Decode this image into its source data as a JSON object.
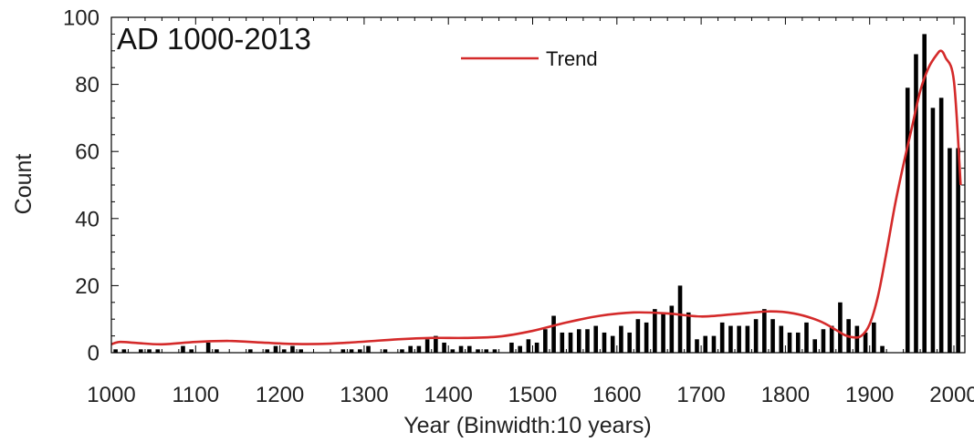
{
  "chart_data": {
    "type": "bar",
    "title": "AD 1000-2013",
    "xlabel": "Year (Binwidth:10 years)",
    "ylabel": "Count",
    "xlim": [
      1000,
      2013
    ],
    "ylim": [
      0,
      100
    ],
    "xticks": [
      1000,
      1100,
      1200,
      1300,
      1400,
      1500,
      1600,
      1700,
      1800,
      1900,
      2000
    ],
    "yticks": [
      0,
      20,
      40,
      60,
      80,
      100
    ],
    "grid": false,
    "legend_position": "top-center",
    "bar_color": "#000000",
    "trend_color": "#d42a2a",
    "series": [
      {
        "type": "bar",
        "x": [
          1005,
          1015,
          1025,
          1035,
          1045,
          1055,
          1065,
          1075,
          1085,
          1095,
          1105,
          1115,
          1125,
          1135,
          1145,
          1155,
          1165,
          1175,
          1185,
          1195,
          1205,
          1215,
          1225,
          1235,
          1245,
          1255,
          1265,
          1275,
          1285,
          1295,
          1305,
          1315,
          1325,
          1335,
          1345,
          1355,
          1365,
          1375,
          1385,
          1395,
          1405,
          1415,
          1425,
          1435,
          1445,
          1455,
          1465,
          1475,
          1485,
          1495,
          1505,
          1515,
          1525,
          1535,
          1545,
          1555,
          1565,
          1575,
          1585,
          1595,
          1605,
          1615,
          1625,
          1635,
          1645,
          1655,
          1665,
          1675,
          1685,
          1695,
          1705,
          1715,
          1725,
          1735,
          1745,
          1755,
          1765,
          1775,
          1785,
          1795,
          1805,
          1815,
          1825,
          1835,
          1845,
          1855,
          1865,
          1875,
          1885,
          1895,
          1905,
          1915,
          1925,
          1935,
          1945,
          1955,
          1965,
          1975,
          1985,
          1995,
          2005
        ],
        "values": [
          1,
          1,
          0,
          1,
          1,
          1,
          0,
          0,
          2,
          1,
          0,
          3,
          1,
          0,
          0,
          0,
          1,
          0,
          1,
          2,
          1,
          2,
          1,
          0,
          0,
          0,
          0,
          1,
          1,
          1,
          2,
          0,
          1,
          0,
          1,
          2,
          2,
          4,
          5,
          3,
          1,
          2,
          2,
          1,
          1,
          1,
          0,
          3,
          2,
          4,
          3,
          7,
          11,
          6,
          6,
          7,
          7,
          8,
          6,
          5,
          8,
          6,
          10,
          9,
          13,
          12,
          14,
          20,
          12,
          4,
          5,
          5,
          9,
          8,
          8,
          8,
          10,
          13,
          10,
          8,
          6,
          6,
          9,
          4,
          7,
          8,
          15,
          10,
          8,
          6,
          9,
          2,
          0,
          0,
          79,
          89,
          95,
          73,
          76,
          61,
          61
        ]
      },
      {
        "name": "Trend",
        "type": "line",
        "x": [
          1000,
          1010,
          1030,
          1060,
          1100,
          1140,
          1180,
          1220,
          1260,
          1300,
          1340,
          1380,
          1420,
          1460,
          1500,
          1540,
          1580,
          1620,
          1660,
          1700,
          1740,
          1780,
          1810,
          1840,
          1860,
          1870,
          1880,
          1890,
          1900,
          1910,
          1920,
          1930,
          1940,
          1950,
          1960,
          1970,
          1980,
          1985,
          1990,
          2000,
          2008
        ],
        "values": [
          2.5,
          3.2,
          2.9,
          2.5,
          3.2,
          3.5,
          3.0,
          2.6,
          2.7,
          3.3,
          4.0,
          4.4,
          4.4,
          4.8,
          6.5,
          9.0,
          11.0,
          12.0,
          11.7,
          10.8,
          11.5,
          12.3,
          11.7,
          9.5,
          6.8,
          5.3,
          4.6,
          5.0,
          8.5,
          17.0,
          30.0,
          44.0,
          56.0,
          67.0,
          78.0,
          85.0,
          89.0,
          90.0,
          88.0,
          81.0,
          50.0
        ]
      }
    ]
  }
}
